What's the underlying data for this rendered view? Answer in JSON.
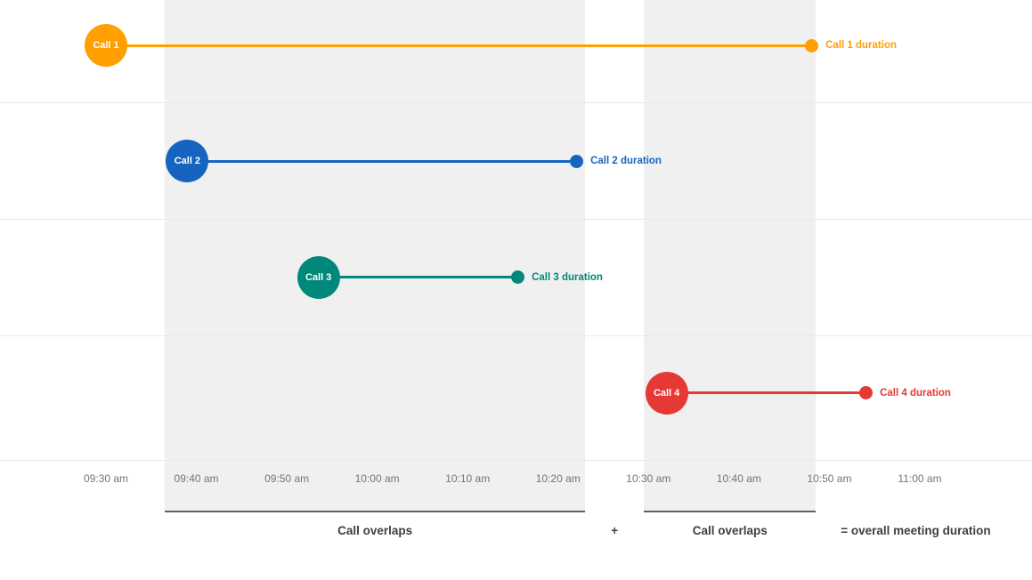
{
  "chart_data": {
    "type": "timeline",
    "title": "",
    "x_axis": {
      "tick_labels": [
        "09:30 am",
        "09:40 am",
        "09:50 am",
        "10:00 am",
        "10:10 am",
        "10:20 am",
        "10:30 am",
        "10:40 am",
        "10:50 am",
        "11:00 am"
      ],
      "start_min": 570,
      "end_min": 660
    },
    "calls": [
      {
        "name": "Call 1",
        "duration_label": "Call 1 duration",
        "color": "#FFA000",
        "start": "09:30 am",
        "end": "10:48 am",
        "start_min": 570,
        "end_min": 648
      },
      {
        "name": "Call 2",
        "duration_label": "Call 2 duration",
        "color": "#1565C0",
        "start": "09:39 am",
        "end": "10:22 am",
        "start_min": 579,
        "end_min": 622
      },
      {
        "name": "Call 3",
        "duration_label": "Call 3 duration",
        "color": "#00897B",
        "start": "09:54 am",
        "end": "10:15 am",
        "start_min": 593.5,
        "end_min": 615.5
      },
      {
        "name": "Call 4",
        "duration_label": "Call 4 duration",
        "color": "#E53935",
        "start": "10:32 am",
        "end": "10:54 am",
        "start_min": 632,
        "end_min": 654
      }
    ],
    "overlap_regions": [
      {
        "label": "Call overlaps",
        "start_min": 576.5,
        "end_min": 623
      },
      {
        "label": "Call overlaps",
        "start_min": 629.5,
        "end_min": 648.5
      }
    ],
    "annotations": {
      "plus": "+",
      "equals": "= overall meeting duration"
    },
    "legend": "none",
    "grid": "horizontal-light"
  }
}
